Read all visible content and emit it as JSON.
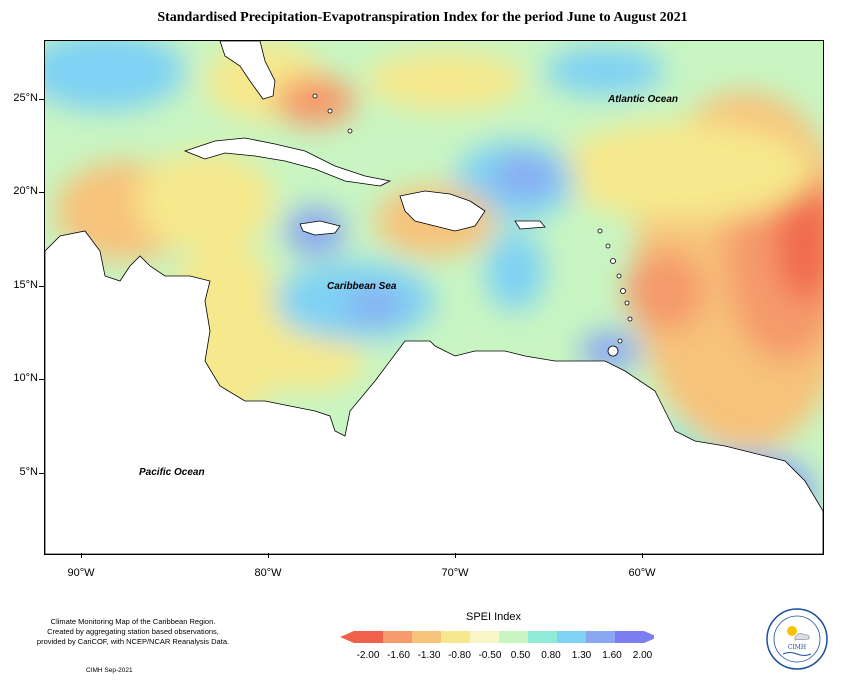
{
  "title": "Standardised Precipitation-Evapotranspiration Index for the period June to August 2021",
  "map_labels": {
    "atlantic": "Atlantic Ocean",
    "caribbean": "Caribbean Sea",
    "pacific": "Pacific Ocean"
  },
  "lat_ticks": [
    "25°N",
    "20°N",
    "15°N",
    "10°N",
    "5°N"
  ],
  "lon_ticks": [
    "90°W",
    "80°W",
    "70°W",
    "60°W"
  ],
  "credits": {
    "line1": "Climate Monitoring Map of the Caribbean Region.",
    "line2": "Created by aggregating station based observations,",
    "line3": "provided by CariCOF, with NCEP/NCAR Reanalysis Data.",
    "cimh": "CIMH Sep-2021"
  },
  "legend": {
    "title": "SPEI Index",
    "labels": [
      "-2.00",
      "-1.60",
      "-1.30",
      "-0.80",
      "-0.50",
      "0.50",
      "0.80",
      "1.30",
      "1.60",
      "2.00"
    ],
    "colors": [
      "#f0604a",
      "#f59a6a",
      "#f7c27a",
      "#f6e88c",
      "#f8f6c6",
      "#c8f5c2",
      "#90ecd8",
      "#7fd2f4",
      "#8aa8f2",
      "#7a7ef0"
    ]
  },
  "logo": {
    "text": "CIMH"
  }
}
